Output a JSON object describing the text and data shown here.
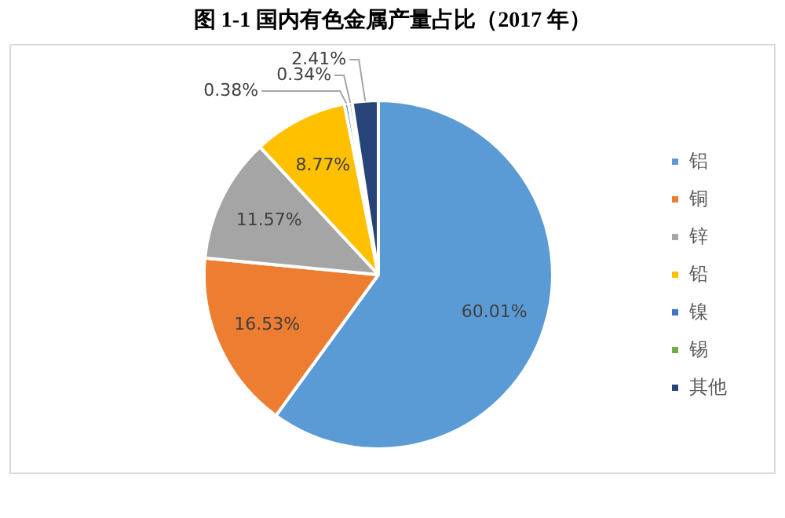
{
  "chart_data": {
    "type": "pie",
    "title": "图 1-1  国内有色金属产量占比（2017 年）",
    "categories": [
      "铝",
      "铜",
      "锌",
      "铅",
      "镍",
      "锡",
      "其他"
    ],
    "values": [
      60.01,
      16.53,
      11.57,
      8.77,
      0.38,
      0.34,
      2.41
    ],
    "colors": [
      "#5b9bd5",
      "#ed7d31",
      "#a5a5a5",
      "#ffc000",
      "#4472c4",
      "#70ad47",
      "#264478"
    ],
    "value_labels": [
      "60.01%",
      "16.53%",
      "11.57%",
      "8.77%",
      "0.38%",
      "0.34%",
      "2.41%"
    ],
    "legend": "right"
  }
}
